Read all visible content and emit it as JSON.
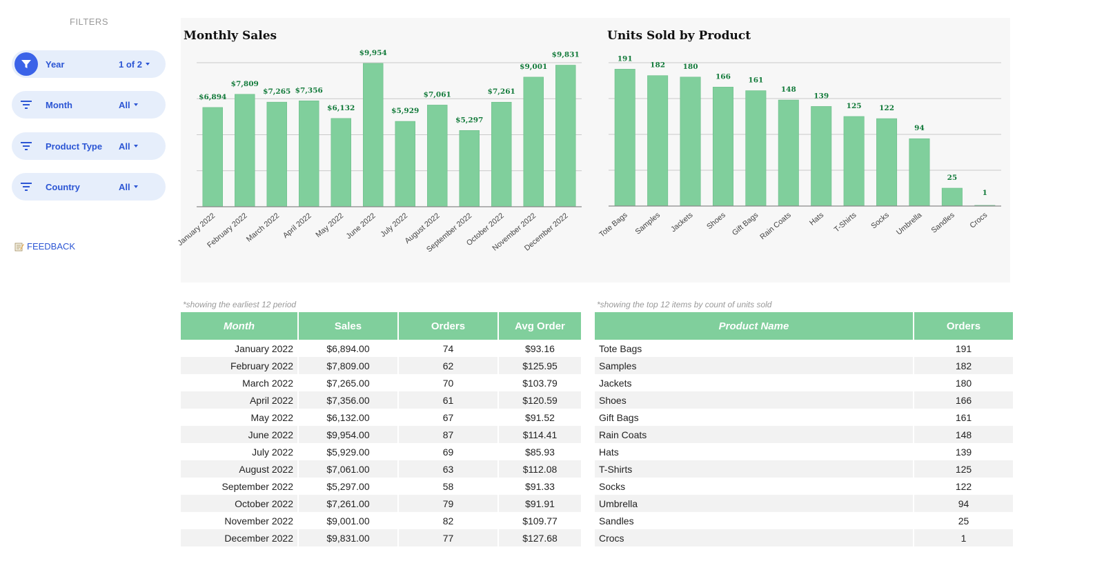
{
  "sidebar": {
    "title": "FILTERS",
    "filters": [
      {
        "label": "Year",
        "value": "1 of 2",
        "active": true
      },
      {
        "label": "Month",
        "value": "All",
        "active": false
      },
      {
        "label": "Product Type",
        "value": "All",
        "active": false
      },
      {
        "label": "Country",
        "value": "All",
        "active": false
      }
    ],
    "feedback": "FEEDBACK"
  },
  "colors": {
    "bar": "#80cf9c",
    "bar_label": "#127a3a",
    "accent": "#3b63e8",
    "pill": "#e6eefb"
  },
  "chart_data": [
    {
      "type": "bar",
      "title": "Monthly Sales",
      "categories": [
        "January 2022",
        "February 2022",
        "March 2022",
        "April 2022",
        "May 2022",
        "June 2022",
        "July 2022",
        "August 2022",
        "September 2022",
        "October 2022",
        "November 2022",
        "December 2022"
      ],
      "values": [
        6894,
        7809,
        7265,
        7356,
        6132,
        9954,
        5929,
        7061,
        5297,
        7261,
        9001,
        9831
      ],
      "labels": [
        "$6,894",
        "$7,809",
        "$7,265",
        "$7,356",
        "$6,132",
        "$9,954",
        "$5,929",
        "$7,061",
        "$5,297",
        "$7,261",
        "$9,001",
        "$9,831"
      ],
      "ylim": [
        0,
        10000
      ],
      "xlabel": "",
      "ylabel": "",
      "grid": true
    },
    {
      "type": "bar",
      "title": "Units Sold by Product",
      "categories": [
        "Tote Bags",
        "Samples",
        "Jackets",
        "Shoes",
        "Gift Bags",
        "Rain Coats",
        "Hats",
        "T-Shirts",
        "Socks",
        "Umbrella",
        "Sandles",
        "Crocs"
      ],
      "values": [
        191,
        182,
        180,
        166,
        161,
        148,
        139,
        125,
        122,
        94,
        25,
        1
      ],
      "labels": [
        "191",
        "182",
        "180",
        "166",
        "161",
        "148",
        "139",
        "125",
        "122",
        "94",
        "25",
        "1"
      ],
      "ylim": [
        0,
        200
      ],
      "xlabel": "",
      "ylabel": "",
      "grid": true
    }
  ],
  "monthly_table": {
    "note": "*showing the earliest 12 period",
    "headers": [
      "Month",
      "Sales",
      "Orders",
      "Avg Order"
    ],
    "rows": [
      [
        "January 2022",
        "$6,894.00",
        "74",
        "$93.16"
      ],
      [
        "February 2022",
        "$7,809.00",
        "62",
        "$125.95"
      ],
      [
        "March 2022",
        "$7,265.00",
        "70",
        "$103.79"
      ],
      [
        "April 2022",
        "$7,356.00",
        "61",
        "$120.59"
      ],
      [
        "May 2022",
        "$6,132.00",
        "67",
        "$91.52"
      ],
      [
        "June 2022",
        "$9,954.00",
        "87",
        "$114.41"
      ],
      [
        "July 2022",
        "$5,929.00",
        "69",
        "$85.93"
      ],
      [
        "August 2022",
        "$7,061.00",
        "63",
        "$112.08"
      ],
      [
        "September 2022",
        "$5,297.00",
        "58",
        "$91.33"
      ],
      [
        "October 2022",
        "$7,261.00",
        "79",
        "$91.91"
      ],
      [
        "November 2022",
        "$9,001.00",
        "82",
        "$109.77"
      ],
      [
        "December 2022",
        "$9,831.00",
        "77",
        "$127.68"
      ]
    ]
  },
  "product_table": {
    "note": "*showing the top 12 items by count of units sold",
    "headers": [
      "Product Name",
      "Orders"
    ],
    "rows": [
      [
        "Tote Bags",
        "191"
      ],
      [
        "Samples",
        "182"
      ],
      [
        "Jackets",
        "180"
      ],
      [
        "Shoes",
        "166"
      ],
      [
        "Gift Bags",
        "161"
      ],
      [
        "Rain Coats",
        "148"
      ],
      [
        "Hats",
        "139"
      ],
      [
        "T-Shirts",
        "125"
      ],
      [
        "Socks",
        "122"
      ],
      [
        "Umbrella",
        "94"
      ],
      [
        "Sandles",
        "25"
      ],
      [
        "Crocs",
        "1"
      ]
    ]
  }
}
